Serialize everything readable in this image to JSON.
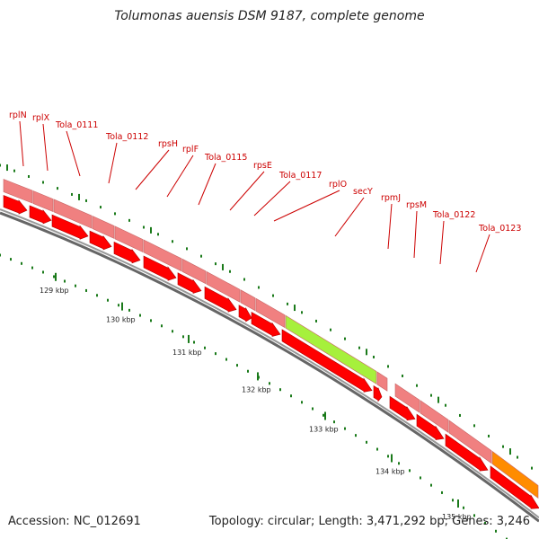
{
  "title": "Tolumonas auensis DSM 9187, complete genome",
  "footer": {
    "accession": "Accession: NC_012691",
    "summary": "Topology: circular; Length: 3,471,292 bp; Genes: 3,246"
  },
  "colors": {
    "gene_label": "#cc0000",
    "cds_arrow": "#ff0000",
    "gene_box": "#f08080",
    "rRNA_box": "#a6f03c",
    "other_box": "#ff8c00",
    "backbone": "#777777",
    "tick": "#1a7a1a"
  },
  "genes": [
    {
      "label": "rplN"
    },
    {
      "label": "rplX"
    },
    {
      "label": "Tola_0111"
    },
    {
      "label": "Tola_0112"
    },
    {
      "label": "rpsH"
    },
    {
      "label": "rplF"
    },
    {
      "label": "Tola_0115"
    },
    {
      "label": "rpsE"
    },
    {
      "label": "Tola_0117"
    },
    {
      "label": "rplO"
    },
    {
      "label": "secY"
    },
    {
      "label": "rpmJ"
    },
    {
      "label": "rpsM"
    },
    {
      "label": "Tola_0122"
    },
    {
      "label": "Tola_0123"
    }
  ],
  "scale": {
    "labels": [
      "129 kbp",
      "130 kbp",
      "131 kbp",
      "132 kbp",
      "133 kbp",
      "134 kbp",
      "135 kbp"
    ]
  }
}
